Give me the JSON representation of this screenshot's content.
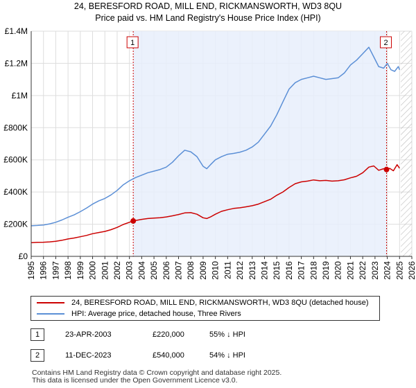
{
  "title_line1": "24, BERESFORD ROAD, MILL END, RICKMANSWORTH, WD3 8QU",
  "title_line2": "Price paid vs. HM Land Registry's House Price Index (HPI)",
  "colors": {
    "property": "#cc0000",
    "hpi": "#5b8fd6",
    "shade": "#e8eefb",
    "grid": "#dddddd"
  },
  "chart_data": {
    "type": "line",
    "xlim": [
      1995,
      2026
    ],
    "ylim": [
      0,
      1400000
    ],
    "y_ticks": [
      0,
      200000,
      400000,
      600000,
      800000,
      1000000,
      1200000,
      1400000
    ],
    "y_tick_labels": [
      "£0",
      "£200K",
      "£400K",
      "£600K",
      "£800K",
      "£1M",
      "£1.2M",
      "£1.4M"
    ],
    "x_ticks": [
      1995,
      1996,
      1997,
      1998,
      1999,
      2000,
      2001,
      2002,
      2003,
      2004,
      2005,
      2006,
      2007,
      2008,
      2009,
      2010,
      2011,
      2012,
      2013,
      2014,
      2015,
      2016,
      2017,
      2018,
      2019,
      2020,
      2021,
      2022,
      2023,
      2024,
      2025,
      2026
    ],
    "x_tick_labels": [
      "1995",
      "1996",
      "1997",
      "1998",
      "1999",
      "2000",
      "2001",
      "2002",
      "2003",
      "2004",
      "2005",
      "2006",
      "2007",
      "2008",
      "2009",
      "2010",
      "2011",
      "2012",
      "2013",
      "2014",
      "2015",
      "2016",
      "2017",
      "2018",
      "2019",
      "2020",
      "2021",
      "2022",
      "2023",
      "2024",
      "2025",
      "2026"
    ],
    "shaded_range": [
      2003.31,
      2023.94
    ],
    "future_hatch_from": 2025.1,
    "series": [
      {
        "name": "24, BERESFORD ROAD, MILL END, RICKMANSWORTH, WD3 8QU (detached house)",
        "color": "#cc0000",
        "x": [
          1995.0,
          1995.5,
          1996.0,
          1996.5,
          1997.0,
          1997.5,
          1998.0,
          1998.5,
          1999.0,
          1999.5,
          2000.0,
          2000.5,
          2001.0,
          2001.5,
          2002.0,
          2002.5,
          2003.0,
          2003.31,
          2003.5,
          2004.0,
          2004.5,
          2005.0,
          2005.5,
          2006.0,
          2006.5,
          2007.0,
          2007.5,
          2008.0,
          2008.5,
          2009.0,
          2009.3,
          2009.6,
          2010.0,
          2010.5,
          2011.0,
          2011.5,
          2012.0,
          2012.5,
          2013.0,
          2013.5,
          2014.0,
          2014.5,
          2015.0,
          2015.5,
          2016.0,
          2016.5,
          2017.0,
          2017.5,
          2018.0,
          2018.5,
          2019.0,
          2019.5,
          2020.0,
          2020.5,
          2021.0,
          2021.5,
          2022.0,
          2022.5,
          2022.9,
          2023.3,
          2023.7,
          2023.94,
          2024.2,
          2024.5,
          2024.8,
          2025.0
        ],
        "y": [
          85000,
          87000,
          88000,
          90000,
          94000,
          100000,
          108000,
          114000,
          122000,
          130000,
          141000,
          148000,
          155000,
          166000,
          180000,
          198000,
          212000,
          220000,
          223000,
          230000,
          235000,
          238000,
          240000,
          245000,
          252000,
          260000,
          270000,
          272000,
          262000,
          240000,
          235000,
          245000,
          262000,
          280000,
          290000,
          298000,
          302000,
          308000,
          315000,
          325000,
          340000,
          355000,
          380000,
          400000,
          428000,
          452000,
          463000,
          468000,
          475000,
          470000,
          472000,
          468000,
          470000,
          476000,
          488000,
          498000,
          520000,
          555000,
          562000,
          535000,
          545000,
          540000,
          547000,
          532000,
          570000,
          548000
        ]
      },
      {
        "name": "HPI: Average price, detached house, Three Rivers",
        "color": "#5b8fd6",
        "x": [
          1995.0,
          1995.5,
          1996.0,
          1996.5,
          1997.0,
          1997.5,
          1998.0,
          1998.5,
          1999.0,
          1999.5,
          2000.0,
          2000.5,
          2001.0,
          2001.5,
          2002.0,
          2002.5,
          2003.0,
          2003.5,
          2004.0,
          2004.5,
          2005.0,
          2005.5,
          2006.0,
          2006.5,
          2007.0,
          2007.5,
          2008.0,
          2008.5,
          2009.0,
          2009.3,
          2009.6,
          2010.0,
          2010.5,
          2011.0,
          2011.5,
          2012.0,
          2012.5,
          2013.0,
          2013.5,
          2014.0,
          2014.5,
          2015.0,
          2015.5,
          2016.0,
          2016.5,
          2017.0,
          2017.5,
          2018.0,
          2018.5,
          2019.0,
          2019.5,
          2020.0,
          2020.5,
          2021.0,
          2021.5,
          2022.0,
          2022.5,
          2022.9,
          2023.3,
          2023.7,
          2024.0,
          2024.3,
          2024.6,
          2024.9,
          2025.0
        ],
        "y": [
          190000,
          192000,
          195000,
          202000,
          212000,
          226000,
          243000,
          258000,
          278000,
          300000,
          325000,
          345000,
          360000,
          382000,
          410000,
          445000,
          470000,
          490000,
          505000,
          520000,
          530000,
          540000,
          555000,
          585000,
          625000,
          660000,
          650000,
          620000,
          560000,
          545000,
          570000,
          600000,
          620000,
          635000,
          640000,
          648000,
          660000,
          680000,
          710000,
          760000,
          810000,
          880000,
          960000,
          1040000,
          1080000,
          1100000,
          1110000,
          1120000,
          1110000,
          1100000,
          1105000,
          1110000,
          1140000,
          1190000,
          1220000,
          1260000,
          1300000,
          1240000,
          1180000,
          1170000,
          1200000,
          1160000,
          1150000,
          1180000,
          1160000
        ]
      }
    ],
    "markers": [
      {
        "label": "1",
        "x": 2003.31,
        "y": 220000
      },
      {
        "label": "2",
        "x": 2023.94,
        "y": 540000
      }
    ]
  },
  "legend": {
    "property_label": "24, BERESFORD ROAD, MILL END, RICKMANSWORTH, WD3 8QU (detached house)",
    "hpi_label": "HPI: Average price, detached house, Three Rivers"
  },
  "transactions": [
    {
      "num": "1",
      "date": "23-APR-2003",
      "price": "£220,000",
      "hpi": "55% ↓ HPI"
    },
    {
      "num": "2",
      "date": "11-DEC-2023",
      "price": "£540,000",
      "hpi": "54% ↓ HPI"
    }
  ],
  "footer_line1": "Contains HM Land Registry data © Crown copyright and database right 2025.",
  "footer_line2": "This data is licensed under the Open Government Licence v3.0."
}
